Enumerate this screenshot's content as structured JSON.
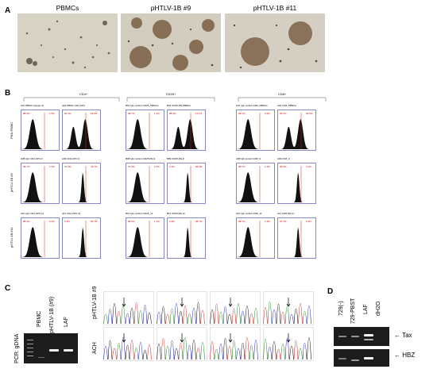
{
  "panels": {
    "a": {
      "letter": "A",
      "labels": [
        "PBMCs",
        "pHTLV-1B #9",
        "pHTLV-1B #11"
      ]
    },
    "b": {
      "letter": "B",
      "groups": [
        "CD4+",
        "CD25+",
        "CD8+"
      ],
      "rows": [
        "PHA-PBMC",
        "pHTLV-1B #9",
        "pHTLV-1B #11"
      ],
      "rows_hist": [
        [
          {
            "title": "A01 PBMC isotype ctl",
            "pct_left": "98.5%",
            "pct_right": "1.5%"
          },
          {
            "title": "A02 PBMC-CD4-APC",
            "pct_left": "81.4%",
            "pct_right": "18.6%"
          },
          {
            "title": "B01 IgG control-CD25_PBMCs",
            "pct_left": "98.7%",
            "pct_right": "1.3%"
          },
          {
            "title": "B02 CD25-PE-PBMCs",
            "pct_left": "88.9%",
            "pct_right": "11.1%"
          },
          {
            "title": "A01 IgG control-CD8_PBMCs",
            "pct_left": "99.1%",
            "pct_right": "0.9%"
          },
          {
            "title": "A02 CD8_PBMCs",
            "pct_left": "65.1%",
            "pct_right": "34.9%"
          }
        ],
        [
          {
            "title": "A08 IgG CD4-APC-9",
            "pct_left": "98.7%",
            "pct_right": "1.3%"
          },
          {
            "title": "A09 CD4-APC-9",
            "pct_left": "21.3%",
            "pct_right": "78.7%"
          },
          {
            "title": "B08 IgG control-CD25-PE-9",
            "pct_left": "97.9%",
            "pct_right": "2.1%"
          },
          {
            "title": "B09 CD25-PE-9",
            "pct_left": "3.1%",
            "pct_right": "96.9%"
          },
          {
            "title": "A08 IgG control-CD8_9",
            "pct_left": "98.7%",
            "pct_right": "1.3%"
          },
          {
            "title": "A09 CD8_9",
            "pct_left": "96.9%",
            "pct_right": "3.1%"
          }
        ],
        [
          {
            "title": "A10 IgG CD4-APC-11",
            "pct_left": "98.0%",
            "pct_right": "2.0%"
          },
          {
            "title": "A11 CD4-APC-11",
            "pct_left": "9.3%",
            "pct_right": "90.7%"
          },
          {
            "title": "B10 IgG control-CD25_11",
            "pct_left": "98.9%",
            "pct_right": "1.1%"
          },
          {
            "title": "B11 CD25-PE-11",
            "pct_left": "3.3%",
            "pct_right": "96.7%"
          },
          {
            "title": "A10 IgG control-CD8_11",
            "pct_left": "98.7%",
            "pct_right": "1.3%"
          },
          {
            "title": "A11 CD8-PE-11",
            "pct_left": "97.7%",
            "pct_right": "2.3%"
          }
        ]
      ]
    },
    "c": {
      "letter": "C",
      "pcr_label": "PCR: gDNA",
      "lanes": [
        "PBMC",
        "pHTLV-1B (#9)",
        "LAF"
      ],
      "chrom_rows": [
        "pHTLV-1B #9",
        "ACH"
      ]
    },
    "d": {
      "letter": "D",
      "lanes": [
        "729(-)",
        "729-PBST",
        "LAF",
        "dH2O"
      ],
      "tax_label": "← Tax",
      "hbz_label": "← HBZ"
    }
  }
}
